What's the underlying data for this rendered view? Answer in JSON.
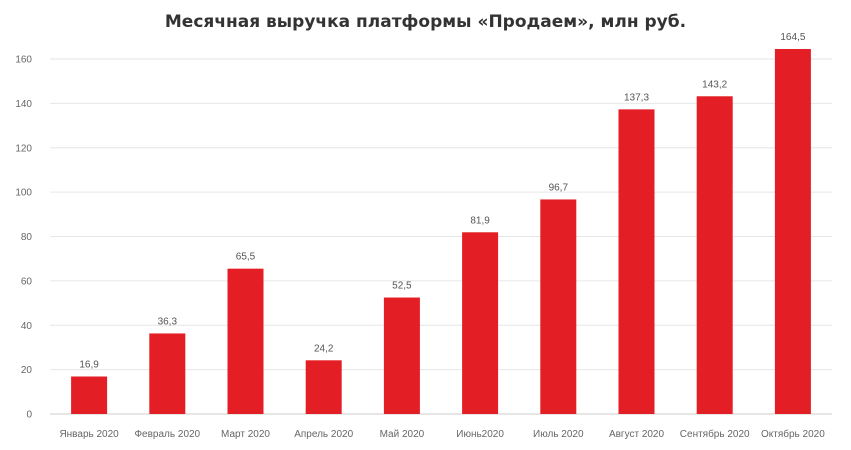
{
  "chart_data": {
    "type": "bar",
    "title": "Месячная выручка платформы «Продаем», млн руб.",
    "xlabel": "",
    "ylabel": "",
    "categories": [
      "Январь 2020",
      "Февраль 2020",
      "Март 2020",
      "Апрель 2020",
      "Май 2020",
      "Июнь2020",
      "Июль 2020",
      "Август 2020",
      "Сентябрь 2020",
      "Октябрь 2020"
    ],
    "values": [
      16.9,
      36.3,
      65.5,
      24.2,
      52.5,
      81.9,
      96.7,
      137.3,
      143.2,
      164.5
    ],
    "value_labels": [
      "16,9",
      "36,3",
      "65,5",
      "24,2",
      "52,5",
      "81,9",
      "96,7",
      "137,3",
      "143,2",
      "164,5"
    ],
    "ylim": [
      0,
      160
    ],
    "yticks": [
      0,
      20,
      40,
      60,
      80,
      100,
      120,
      140,
      160
    ],
    "grid": true,
    "legend": "none",
    "bar_color": "#e31e24"
  }
}
